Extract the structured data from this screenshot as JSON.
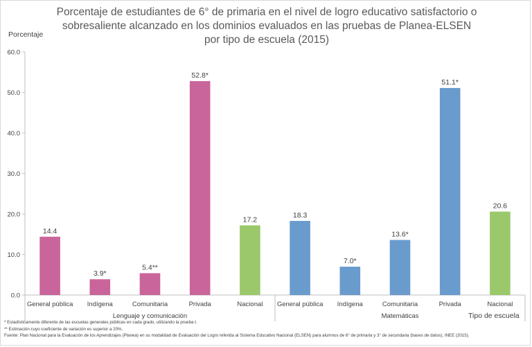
{
  "colors": {
    "lenguaje": "#c9659a",
    "matematicas": "#6a9bcd",
    "nacional": "#9bc86b",
    "axis": "#bfbfbf",
    "text": "#404040"
  },
  "notes": {
    "note1": "* Estadísticamente diferente de las escuelas generales públicas en cada grado, utilizando la prueba t.",
    "note2": "** Estimación cuyo coeficiente de variación es superior a 20%.",
    "source": "Fuente: Plan Nacional para la Evaluación de los Aprendizajes (Planea) en su modalidad de Evaluación del Logro referida al Sistema Educativo Nacional (ELSEN) para alumnos de 6° de primaria y 3° de secundaria (bases de datos), INEE (2015)."
  },
  "chart_data": {
    "type": "bar",
    "title": "Porcentaje de estudiantes de 6° de primaria  en el nivel de logro educativo satisfactorio o sobresaliente alcanzado en los dominios evaluados en las pruebas de Planea-ELSEN por tipo de escuela (2015)",
    "ylabel": "Porcentaje",
    "xlabel": "Tipo de escuela",
    "ylim": [
      0,
      60
    ],
    "yticks": [
      "0.0",
      "10.0",
      "20.0",
      "30.0",
      "40.0",
      "50.0",
      "60.0"
    ],
    "grid": false,
    "legend": "none",
    "groups": [
      {
        "name": "Lenguaje y comunicación",
        "categories": [
          "General pública",
          "Indígena",
          "Comunitaria",
          "Privada",
          "Nacional"
        ],
        "values": [
          14.4,
          3.9,
          5.4,
          52.8,
          17.2
        ],
        "labels": [
          "14.4",
          "3.9*",
          "5.4**",
          "52.8*",
          "17.2"
        ],
        "colors": [
          "#c9659a",
          "#c9659a",
          "#c9659a",
          "#c9659a",
          "#9bc86b"
        ]
      },
      {
        "name": "Matemáticas",
        "categories": [
          "General pública",
          "Indígena",
          "Comunitaria",
          "Privada",
          "Nacional"
        ],
        "values": [
          18.3,
          7.0,
          13.6,
          51.1,
          20.6
        ],
        "labels": [
          "18.3",
          "7.0*",
          "13.6*",
          "51.1*",
          "20.6"
        ],
        "colors": [
          "#6a9bcd",
          "#6a9bcd",
          "#6a9bcd",
          "#6a9bcd",
          "#9bc86b"
        ]
      }
    ]
  }
}
